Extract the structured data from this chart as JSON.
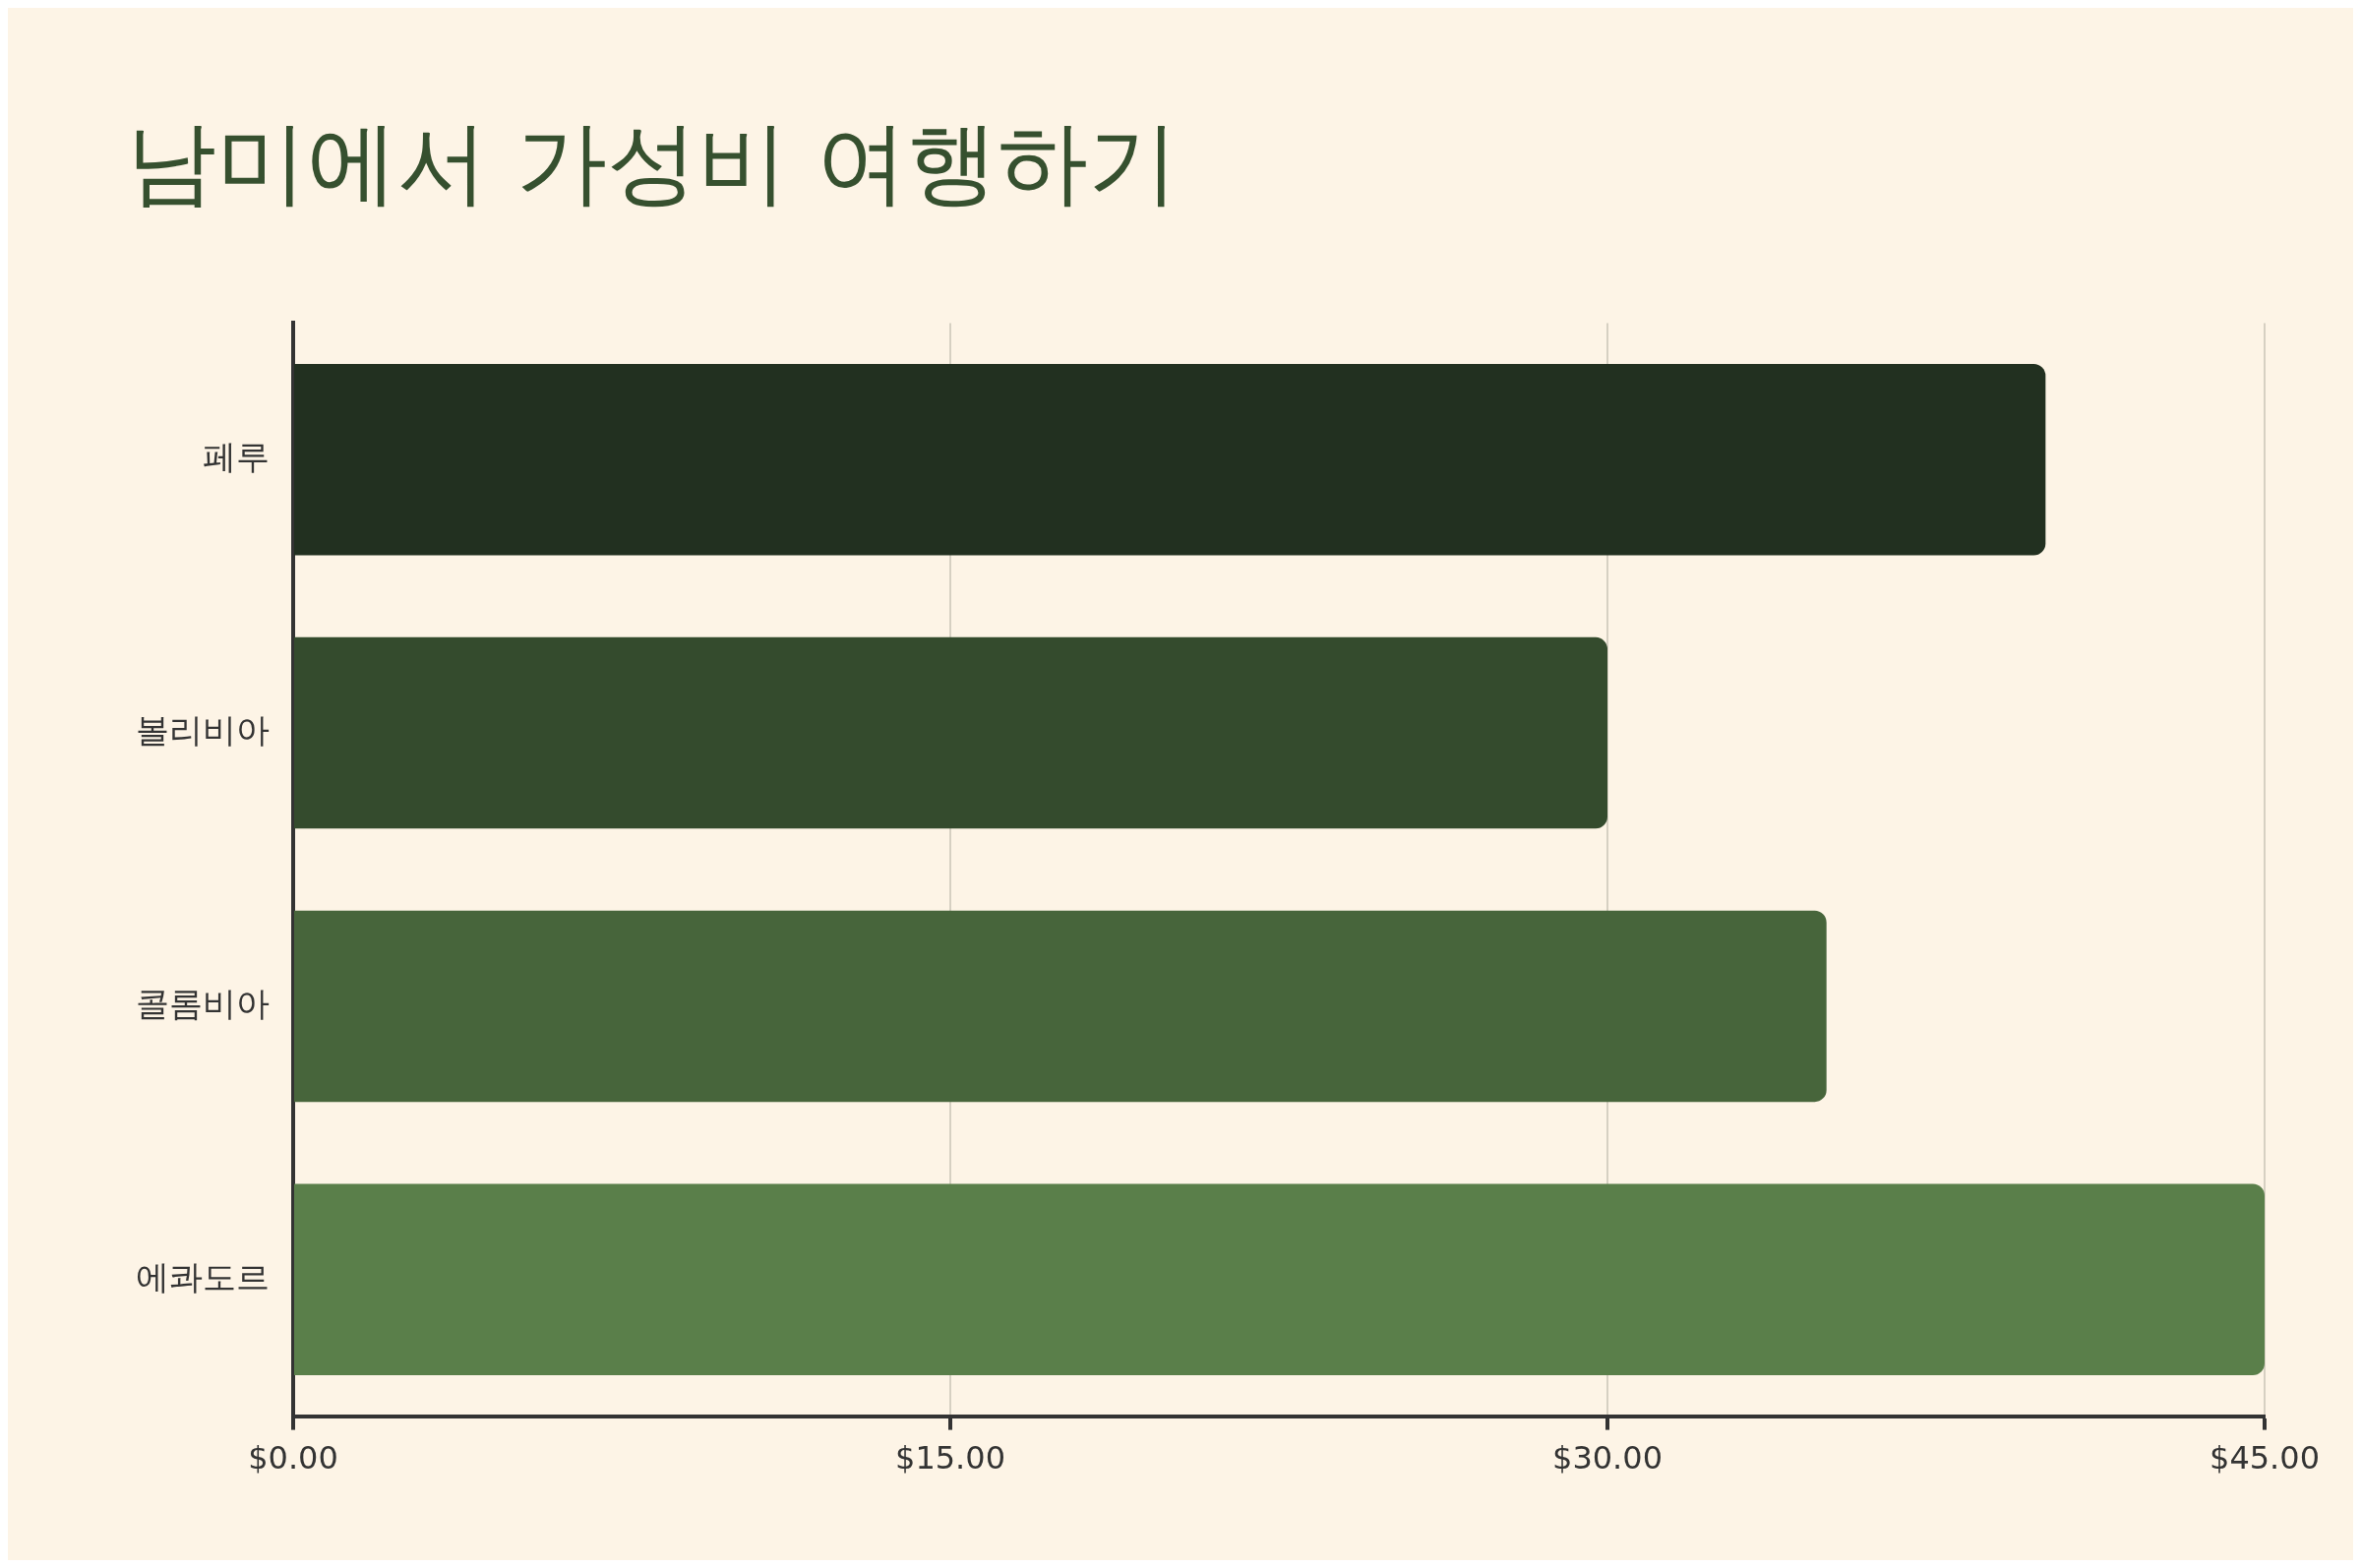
{
  "chart_data": {
    "type": "bar",
    "orientation": "horizontal",
    "title": "남미에서 가성비 여행하기",
    "categories": [
      "페루",
      "볼리비아",
      "콜롬비아",
      "에콰도르"
    ],
    "values": [
      40,
      30,
      35,
      45
    ],
    "colors": [
      "#223020",
      "#344b2d",
      "#47653b",
      "#5a7f4a"
    ],
    "xlim": [
      0,
      45
    ],
    "xticks": [
      {
        "value": 0,
        "label": "$0.00"
      },
      {
        "value": 15,
        "label": "$15.00"
      },
      {
        "value": 30,
        "label": "$30.00"
      },
      {
        "value": 45,
        "label": "$45.00"
      }
    ],
    "grid": "x",
    "legend": false
  }
}
